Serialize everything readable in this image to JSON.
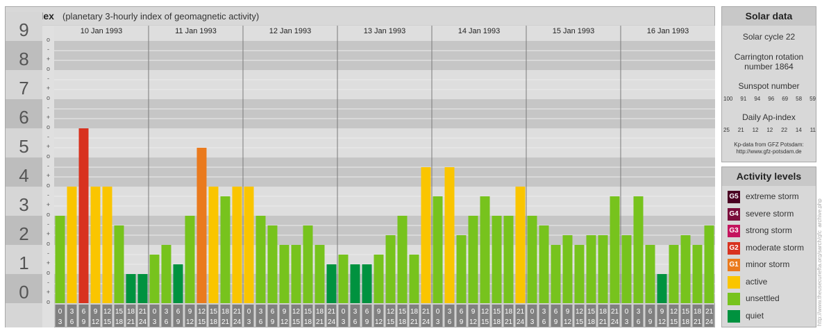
{
  "header": {
    "title": "Kp-index",
    "subtitle": "(planetary 3-hourly index of geomagnetic activity)"
  },
  "colors": {
    "quiet": "#00923f",
    "unsettled": "#77c31d",
    "active": "#fac500",
    "minor_storm": "#ea7a1d",
    "moderate_storm": "#d8321f",
    "strong_storm": "#c4145e",
    "severe_storm": "#7a0c3b",
    "extreme_storm": "#4a0022",
    "band_dark": "#c6c6c6",
    "band_light": "#dedede",
    "hour_box": "#808080"
  },
  "chart_data": {
    "type": "bar",
    "title": "Kp-index",
    "ylim": [
      0,
      9
    ],
    "y_ticks": [
      "0",
      "1",
      "2",
      "3",
      "4",
      "5",
      "6",
      "7",
      "8",
      "9"
    ],
    "sub_ticks": [
      "o",
      "+",
      "-"
    ],
    "days": [
      "10 Jan 1993",
      "11 Jan 1993",
      "12 Jan 1993",
      "13 Jan 1993",
      "14 Jan 1993",
      "15 Jan 1993",
      "16 Jan 1993"
    ],
    "hour_start": [
      "0",
      "3",
      "6",
      "9",
      "12",
      "15",
      "18",
      "21"
    ],
    "hour_end": [
      "3",
      "6",
      "9",
      "12",
      "15",
      "18",
      "21",
      "24"
    ],
    "values": [
      [
        3.0,
        4.0,
        6.0,
        4.0,
        4.0,
        2.667,
        1.0,
        1.0
      ],
      [
        1.667,
        2.0,
        1.333,
        3.0,
        5.333,
        4.0,
        3.667,
        4.0
      ],
      [
        4.0,
        3.0,
        2.667,
        2.0,
        2.0,
        2.667,
        2.0,
        1.333
      ],
      [
        1.667,
        1.333,
        1.333,
        1.667,
        2.333,
        3.0,
        1.667,
        4.667
      ],
      [
        3.667,
        4.667,
        2.333,
        3.0,
        3.667,
        3.0,
        3.0,
        4.0
      ],
      [
        3.0,
        2.667,
        2.0,
        2.333,
        2.0,
        2.333,
        2.333,
        3.667
      ],
      [
        2.333,
        3.667,
        2.0,
        1.0,
        2.0,
        2.333,
        2.0,
        2.667
      ]
    ]
  },
  "solar": {
    "heading": "Solar data",
    "cycle": "Solar cycle 22",
    "carrington_line1": "Carrington rotation",
    "carrington_line2": "number 1864",
    "sunspot_label": "Sunspot number",
    "sunspot_values": [
      "100",
      "91",
      "94",
      "96",
      "69",
      "58",
      "59"
    ],
    "ap_label": "Daily Ap-index",
    "ap_values": [
      "25",
      "21",
      "12",
      "12",
      "22",
      "14",
      "11"
    ],
    "source_line1": "Kp-data from GFZ Potsdam:",
    "source_line2": "http://www.gfz-potsdam.de"
  },
  "levels": {
    "heading": "Activity levels",
    "items": [
      {
        "code": "G5",
        "label": "extreme storm",
        "color": "#4a0022"
      },
      {
        "code": "G4",
        "label": "severe storm",
        "color": "#7a0c3b"
      },
      {
        "code": "G3",
        "label": "strong storm",
        "color": "#c4145e"
      },
      {
        "code": "G2",
        "label": "moderate storm",
        "color": "#d8321f"
      },
      {
        "code": "G1",
        "label": "minor storm",
        "color": "#ea7a1d"
      },
      {
        "code": "",
        "label": "active",
        "color": "#fac500"
      },
      {
        "code": "",
        "label": "unsettled",
        "color": "#77c31d"
      },
      {
        "code": "",
        "label": "quiet",
        "color": "#00923f"
      }
    ]
  },
  "watermark": "http://www.theusecuriefta.org/sarch/gfc_archive.php"
}
